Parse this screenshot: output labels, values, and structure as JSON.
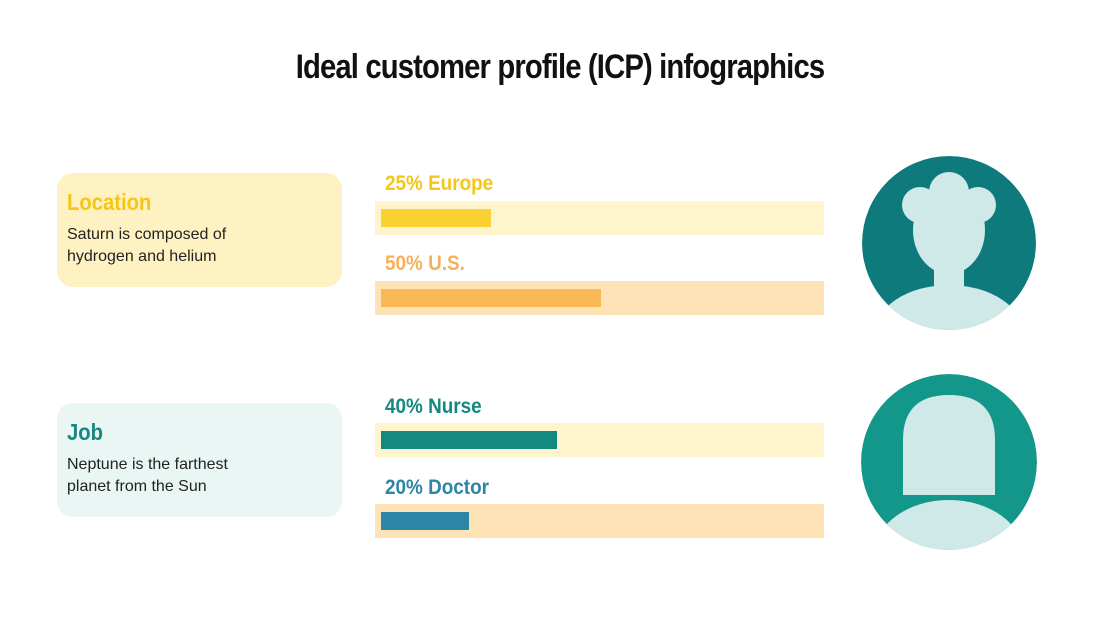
{
  "title": "Ideal customer profile (ICP) infographics",
  "sections": [
    {
      "heading": "Location",
      "text": "Saturn is composed of hydrogen and helium",
      "card_color": "#fff2c2",
      "heading_color": "#f5c518",
      "bars": [
        {
          "label": "25% Europe",
          "value": 25,
          "color": "#fcd232",
          "label_color": "#f5c518",
          "track_color": "#fff5cc"
        },
        {
          "label": "50% U.S.",
          "value": 50,
          "color": "#fbb955",
          "label_color": "#f7b05a",
          "track_color": "#fde3b5"
        }
      ]
    },
    {
      "heading": "Job",
      "text": "Neptune is the farthest planet from the Sun",
      "card_color": "#eaf6f4",
      "heading_color": "#14897f",
      "bars": [
        {
          "label": "40% Nurse",
          "value": 40,
          "color": "#14897f",
          "label_color": "#14897f",
          "track_color": "#fff5cc"
        },
        {
          "label": "20% Doctor",
          "value": 20,
          "color": "#2d85a5",
          "label_color": "#2d85a5",
          "track_color": "#fde3b5"
        }
      ]
    }
  ]
}
